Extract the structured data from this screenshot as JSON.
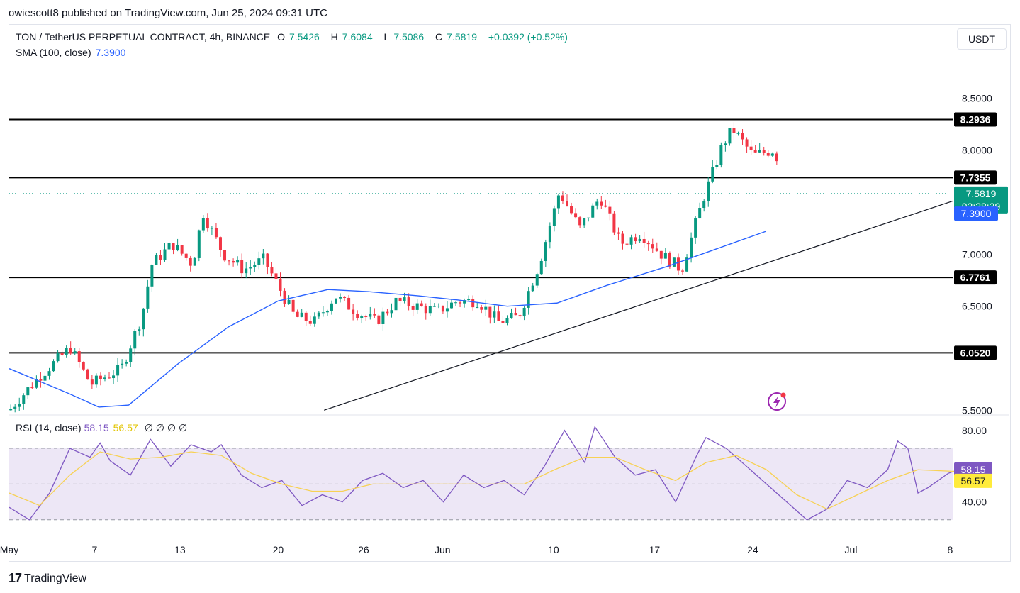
{
  "publisher": "owiescott8 published on TradingView.com, Jun 25, 2024 09:31 UTC",
  "header": {
    "symbol": "TON / TetherUS PERPETUAL CONTRACT, 4h, BINANCE",
    "open_label": "O",
    "open": "7.5426",
    "high_label": "H",
    "high": "7.6084",
    "low_label": "L",
    "low": "7.5086",
    "close_label": "C",
    "close": "7.5819",
    "change": "+0.0392 (+0.52%)"
  },
  "sma_legend": {
    "label": "SMA (100, close)",
    "value": "7.3900"
  },
  "rsi_legend": {
    "label": "RSI (14, close)",
    "value": "58.15",
    "ma_value": "56.57",
    "placeholders": "∅ ∅ ∅ ∅"
  },
  "currency_button": "USDT",
  "footer": {
    "logo": "17",
    "brand": "TradingView"
  },
  "colors": {
    "up": "#089981",
    "down": "#f23645",
    "sma": "#2962ff",
    "rsi": "#7e57c2",
    "rsi_ma": "#f7d154",
    "band": "#ede7f6"
  },
  "chart_data": {
    "type": "candlestick",
    "price_axis": {
      "ticks": [
        "8.5000",
        "8.0000",
        "7.0000",
        "6.5000",
        "5.5000"
      ],
      "range": [
        5.5,
        8.5
      ]
    },
    "time_axis": {
      "ticks": [
        "May",
        "7",
        "13",
        "20",
        "26",
        "Jun",
        "10",
        "17",
        "24",
        "Jul",
        "8"
      ]
    },
    "horizontal_levels": [
      {
        "label": "8.2936",
        "value": 8.2936
      },
      {
        "label": "7.7355",
        "value": 7.7355
      },
      {
        "label": "6.7761",
        "value": 6.7761
      },
      {
        "label": "6.0520",
        "value": 6.052
      }
    ],
    "last_price": {
      "value": 7.5819,
      "label": "7.5819",
      "countdown": "02:28:39"
    },
    "sma": {
      "value": 7.39,
      "label": "7.3900",
      "path": [
        [
          0,
          5.9
        ],
        [
          6,
          5.66
        ],
        [
          9,
          5.53
        ],
        [
          12,
          5.55
        ],
        [
          17,
          5.95
        ],
        [
          22,
          6.3
        ],
        [
          27,
          6.55
        ],
        [
          32,
          6.66
        ],
        [
          36,
          6.64
        ],
        [
          41,
          6.6
        ],
        [
          45,
          6.56
        ],
        [
          50,
          6.5
        ],
        [
          55,
          6.53
        ],
        [
          60,
          6.7
        ],
        [
          66,
          6.88
        ],
        [
          71,
          7.05
        ],
        [
          76,
          7.22
        ],
        [
          82,
          7.38
        ],
        [
          88,
          7.4
        ],
        [
          95,
          7.4
        ],
        [
          100,
          7.44
        ]
      ]
    },
    "trendline": {
      "from": [
        30,
        5.5
      ],
      "to": [
        109,
        7.55
      ]
    },
    "candles_summary": "4h OHLC candles from May 1 to Jun 25, 2024, spanning roughly 5.5 to 8.3",
    "candle_path": [
      [
        0,
        5.5
      ],
      [
        3,
        5.83
      ],
      [
        6,
        6.1
      ],
      [
        8,
        5.75
      ],
      [
        11,
        5.9
      ],
      [
        13,
        6.4
      ],
      [
        14,
        6.9
      ],
      [
        16,
        7.1
      ],
      [
        18,
        6.9
      ],
      [
        19,
        7.4
      ],
      [
        21,
        7.0
      ],
      [
        23,
        6.85
      ],
      [
        25,
        6.95
      ],
      [
        28,
        6.4
      ],
      [
        30,
        6.35
      ],
      [
        32,
        6.6
      ],
      [
        34,
        6.45
      ],
      [
        36,
        6.35
      ],
      [
        38,
        6.55
      ],
      [
        40,
        6.5
      ],
      [
        42,
        6.45
      ],
      [
        44,
        6.55
      ],
      [
        46,
        6.55
      ],
      [
        48,
        6.35
      ],
      [
        50,
        6.4
      ],
      [
        52,
        6.9
      ],
      [
        54,
        7.6
      ],
      [
        56,
        7.25
      ],
      [
        58,
        7.55
      ],
      [
        60,
        7.1
      ],
      [
        62,
        7.2
      ],
      [
        64,
        7.0
      ],
      [
        66,
        6.85
      ],
      [
        68,
        7.5
      ],
      [
        70,
        8.05
      ],
      [
        71,
        8.2
      ],
      [
        73,
        7.95
      ],
      [
        75,
        8.0
      ],
      [
        77,
        7.6
      ],
      [
        79,
        7.0
      ],
      [
        81,
        6.9
      ],
      [
        82,
        7.3
      ],
      [
        84,
        7.15
      ],
      [
        86,
        7.2
      ],
      [
        88,
        7.55
      ],
      [
        89,
        7.7
      ],
      [
        90,
        7.3
      ],
      [
        91,
        7.3
      ],
      [
        93,
        7.55
      ],
      [
        94,
        7.58
      ]
    ],
    "rsi": {
      "levels": [
        70,
        30
      ],
      "midline": 50,
      "ticks": [
        "80.00",
        "40.00"
      ],
      "value": 58.15,
      "ma": 56.57,
      "path": [
        [
          0,
          37
        ],
        [
          2,
          30
        ],
        [
          4,
          45
        ],
        [
          6,
          70
        ],
        [
          8,
          65
        ],
        [
          9,
          73
        ],
        [
          10,
          63
        ],
        [
          12,
          55
        ],
        [
          14,
          75
        ],
        [
          16,
          60
        ],
        [
          18,
          72
        ],
        [
          20,
          68
        ],
        [
          21,
          72
        ],
        [
          23,
          55
        ],
        [
          25,
          48
        ],
        [
          27,
          52
        ],
        [
          29,
          38
        ],
        [
          31,
          44
        ],
        [
          33,
          40
        ],
        [
          35,
          52
        ],
        [
          37,
          56
        ],
        [
          39,
          48
        ],
        [
          41,
          52
        ],
        [
          43,
          40
        ],
        [
          45,
          55
        ],
        [
          47,
          48
        ],
        [
          49,
          52
        ],
        [
          51,
          44
        ],
        [
          53,
          60
        ],
        [
          55,
          80
        ],
        [
          57,
          62
        ],
        [
          58,
          82
        ],
        [
          60,
          65
        ],
        [
          62,
          55
        ],
        [
          64,
          58
        ],
        [
          66,
          40
        ],
        [
          68,
          65
        ],
        [
          69,
          76
        ],
        [
          71,
          70
        ],
        [
          73,
          60
        ],
        [
          75,
          50
        ],
        [
          77,
          40
        ],
        [
          79,
          30
        ],
        [
          81,
          36
        ],
        [
          83,
          52
        ],
        [
          85,
          48
        ],
        [
          87,
          58
        ],
        [
          88,
          74
        ],
        [
          89,
          70
        ],
        [
          90,
          45
        ],
        [
          91,
          48
        ],
        [
          93,
          56
        ],
        [
          94,
          58
        ]
      ],
      "ma_path": [
        [
          0,
          45
        ],
        [
          3,
          38
        ],
        [
          6,
          55
        ],
        [
          9,
          68
        ],
        [
          12,
          64
        ],
        [
          15,
          65
        ],
        [
          18,
          68
        ],
        [
          21,
          66
        ],
        [
          24,
          56
        ],
        [
          27,
          50
        ],
        [
          30,
          46
        ],
        [
          33,
          46
        ],
        [
          36,
          50
        ],
        [
          39,
          50
        ],
        [
          42,
          50
        ],
        [
          45,
          50
        ],
        [
          48,
          50
        ],
        [
          51,
          50
        ],
        [
          54,
          58
        ],
        [
          57,
          65
        ],
        [
          60,
          65
        ],
        [
          63,
          58
        ],
        [
          66,
          52
        ],
        [
          69,
          62
        ],
        [
          72,
          66
        ],
        [
          75,
          58
        ],
        [
          78,
          44
        ],
        [
          81,
          36
        ],
        [
          84,
          44
        ],
        [
          87,
          52
        ],
        [
          90,
          58
        ],
        [
          94,
          57
        ]
      ]
    }
  }
}
